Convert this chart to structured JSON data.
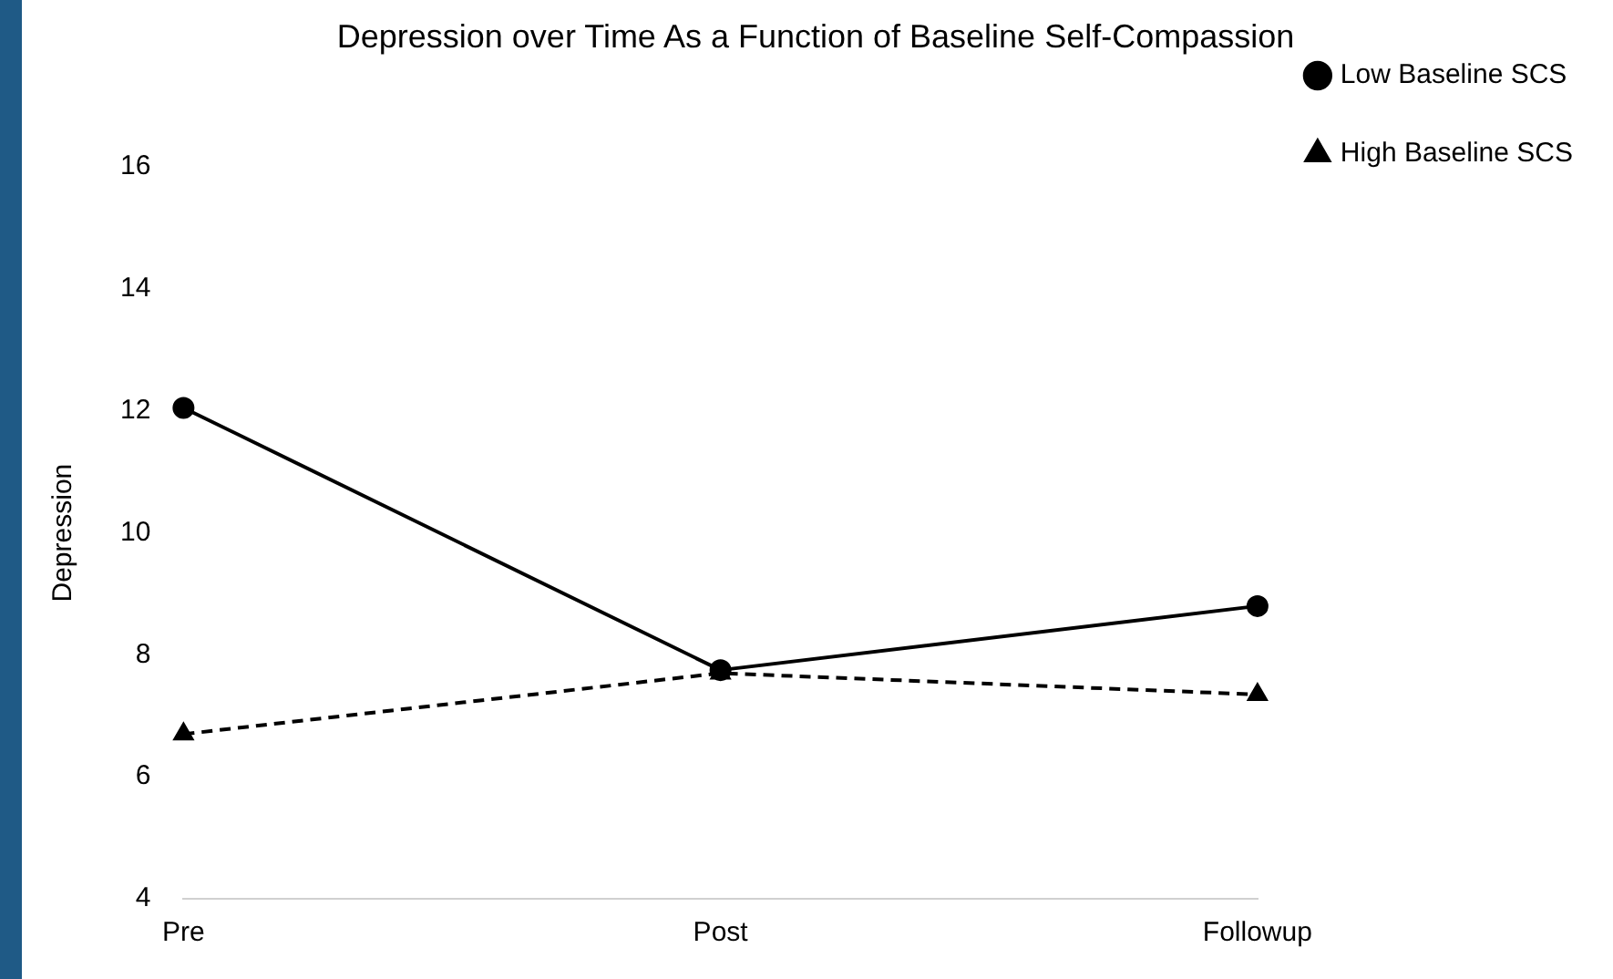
{
  "chart_data": {
    "type": "line",
    "title": "Depression over Time As a Function of Baseline Self-Compassion",
    "ylabel": "Depression",
    "categories": [
      "Pre",
      "Post",
      "Followup"
    ],
    "series": [
      {
        "name": "Low Baseline SCS",
        "color": "#000000",
        "values": [
          12.05,
          7.75,
          8.8
        ],
        "marker": "circle",
        "line_style": "solid"
      },
      {
        "name": "High Baseline SCS",
        "color": "#000000",
        "values": [
          6.7,
          7.7,
          7.35
        ],
        "marker": "triangle",
        "line_style": "dashed"
      }
    ],
    "ylim": [
      4,
      16
    ],
    "yticks": [
      4,
      6,
      8,
      10,
      12,
      14,
      16
    ],
    "grid": false,
    "legend": "top right"
  }
}
